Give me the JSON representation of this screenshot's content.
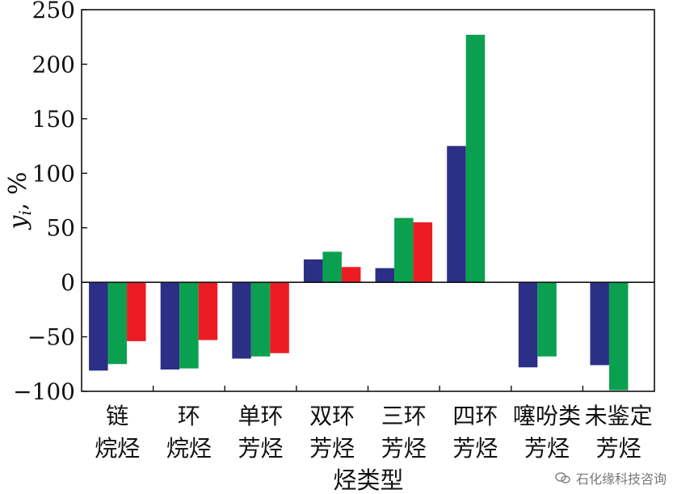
{
  "chart_data": {
    "type": "bar",
    "title": "",
    "ylabel": "y_i, %",
    "xlabel": "烃类型",
    "ylim": [
      -100,
      250
    ],
    "yticks": [
      -100,
      -50,
      0,
      50,
      100,
      150,
      200,
      250
    ],
    "ytick_labels": [
      "−100",
      "−50",
      "0",
      "50",
      "100",
      "150",
      "200",
      "250"
    ],
    "categories": [
      [
        "链",
        "烷烃"
      ],
      [
        "环",
        "烷烃"
      ],
      [
        "单环",
        "芳烃"
      ],
      [
        "双环",
        "芳烃"
      ],
      [
        "三环",
        "芳烃"
      ],
      [
        "四环",
        "芳烃"
      ],
      [
        "噻吩类",
        "芳烃"
      ],
      [
        "未鉴定",
        "芳烃"
      ]
    ],
    "series": [
      {
        "color": "#2b2f86",
        "values": [
          -81,
          -80,
          -70,
          21,
          13,
          125,
          -78,
          -76
        ]
      },
      {
        "color": "#0aa04f",
        "values": [
          -75,
          -79,
          -68,
          28,
          59,
          227,
          -68,
          -99
        ]
      },
      {
        "color": "#ed1c24",
        "values": [
          -54,
          -53,
          -65,
          14,
          55,
          null,
          null,
          null
        ]
      }
    ],
    "grid": false,
    "legend": "none"
  },
  "watermark": {
    "text": "石化缘科技咨询",
    "icon": "wechat-icon"
  }
}
